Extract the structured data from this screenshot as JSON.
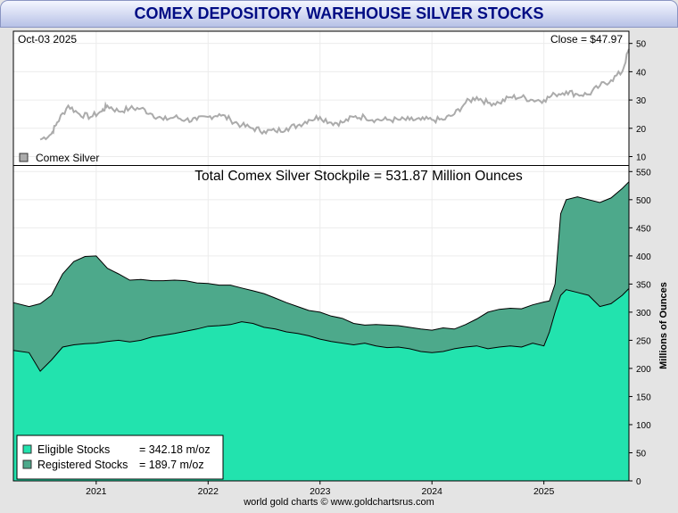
{
  "title": "COMEX DEPOSITORY WAREHOUSE SILVER STOCKS",
  "credit": "world gold charts © www.goldchartsrus.com",
  "colors": {
    "eligible": "#22e3ae",
    "registered": "#4da98b",
    "price_line": "#ababab",
    "title_text": "#000c84"
  },
  "chart_data": [
    {
      "type": "line",
      "panel": "price",
      "date_label": "Oct-03  2025",
      "close_label": "Close = $47.97",
      "legend": [
        {
          "name": "Comex Silver",
          "color": "#ababab"
        }
      ],
      "ylim": [
        7,
        54
      ],
      "yticks": [
        10,
        20,
        30,
        40,
        50
      ],
      "x": [
        2020.5,
        2020.6,
        2020.65,
        2020.75,
        2020.85,
        2020.95,
        2021.05,
        2021.1,
        2021.2,
        2021.3,
        2021.4,
        2021.5,
        2021.6,
        2021.7,
        2021.8,
        2021.9,
        2022.0,
        2022.1,
        2022.2,
        2022.3,
        2022.4,
        2022.5,
        2022.6,
        2022.7,
        2022.8,
        2022.9,
        2023.0,
        2023.1,
        2023.2,
        2023.3,
        2023.4,
        2023.5,
        2023.6,
        2023.7,
        2023.8,
        2023.9,
        2024.0,
        2024.1,
        2024.2,
        2024.3,
        2024.4,
        2024.5,
        2024.6,
        2024.7,
        2024.8,
        2024.9,
        2025.0,
        2025.1,
        2025.2,
        2025.3,
        2025.4,
        2025.5,
        2025.6,
        2025.7,
        2025.76
      ],
      "values": [
        16,
        18,
        22,
        28,
        25,
        24,
        26,
        28,
        26,
        27,
        27,
        25,
        23,
        24,
        23,
        23,
        24,
        25,
        23,
        21,
        20,
        19,
        19,
        20,
        21,
        23,
        24,
        22,
        22,
        24,
        24,
        23,
        23,
        23,
        23,
        23,
        23,
        23,
        25,
        29,
        31,
        29,
        29,
        31,
        31,
        30,
        30,
        32,
        33,
        32,
        32,
        35,
        37,
        40,
        48
      ]
    },
    {
      "type": "area",
      "panel": "stocks",
      "title": "Total Comex Silver Stockpile = 531.87 Million Ounces",
      "ylabel": "Millions of Ounces",
      "ylim": [
        0,
        560
      ],
      "yticks": [
        0,
        50,
        100,
        150,
        200,
        250,
        300,
        350,
        400,
        450,
        500,
        550
      ],
      "xticks": [
        "2021",
        "2022",
        "2023",
        "2024",
        "2025"
      ],
      "xtick_values": [
        2021,
        2022,
        2023,
        2024,
        2025
      ],
      "xlim": [
        2020.26,
        2025.76
      ],
      "x": [
        2020.26,
        2020.4,
        2020.5,
        2020.6,
        2020.7,
        2020.8,
        2020.9,
        2021.0,
        2021.1,
        2021.2,
        2021.3,
        2021.4,
        2021.5,
        2021.6,
        2021.7,
        2021.8,
        2021.9,
        2022.0,
        2022.1,
        2022.2,
        2022.3,
        2022.4,
        2022.5,
        2022.6,
        2022.7,
        2022.8,
        2022.9,
        2023.0,
        2023.1,
        2023.2,
        2023.3,
        2023.4,
        2023.5,
        2023.6,
        2023.7,
        2023.8,
        2023.9,
        2024.0,
        2024.1,
        2024.2,
        2024.3,
        2024.4,
        2024.5,
        2024.6,
        2024.7,
        2024.8,
        2024.9,
        2025.0,
        2025.05,
        2025.1,
        2025.15,
        2025.2,
        2025.3,
        2025.4,
        2025.5,
        2025.6,
        2025.7,
        2025.76
      ],
      "series": [
        {
          "name": "Eligible Stocks",
          "label": "Eligible Stocks",
          "value_label": "= 342.18 m/oz",
          "color": "#22e3ae",
          "values": [
            232,
            228,
            195,
            215,
            238,
            242,
            244,
            245,
            248,
            250,
            247,
            250,
            256,
            259,
            262,
            266,
            270,
            275,
            276,
            278,
            283,
            280,
            273,
            270,
            265,
            262,
            258,
            252,
            248,
            245,
            242,
            245,
            240,
            237,
            238,
            235,
            230,
            228,
            230,
            235,
            238,
            240,
            235,
            238,
            240,
            238,
            245,
            240,
            265,
            300,
            330,
            340,
            335,
            330,
            310,
            315,
            330,
            342
          ]
        },
        {
          "name": "Registered Stocks",
          "label": "Registered Stocks",
          "value_label": "= 189.7 m/oz",
          "color": "#4da98b",
          "values": [
            85,
            82,
            120,
            115,
            130,
            148,
            155,
            155,
            130,
            118,
            110,
            108,
            100,
            97,
            95,
            90,
            82,
            76,
            72,
            70,
            60,
            58,
            60,
            55,
            52,
            48,
            45,
            48,
            45,
            44,
            38,
            32,
            38,
            40,
            38,
            38,
            40,
            40,
            42,
            35,
            40,
            48,
            65,
            67,
            67,
            68,
            68,
            78,
            55,
            50,
            145,
            160,
            170,
            170,
            185,
            188,
            190,
            190
          ]
        }
      ]
    }
  ]
}
